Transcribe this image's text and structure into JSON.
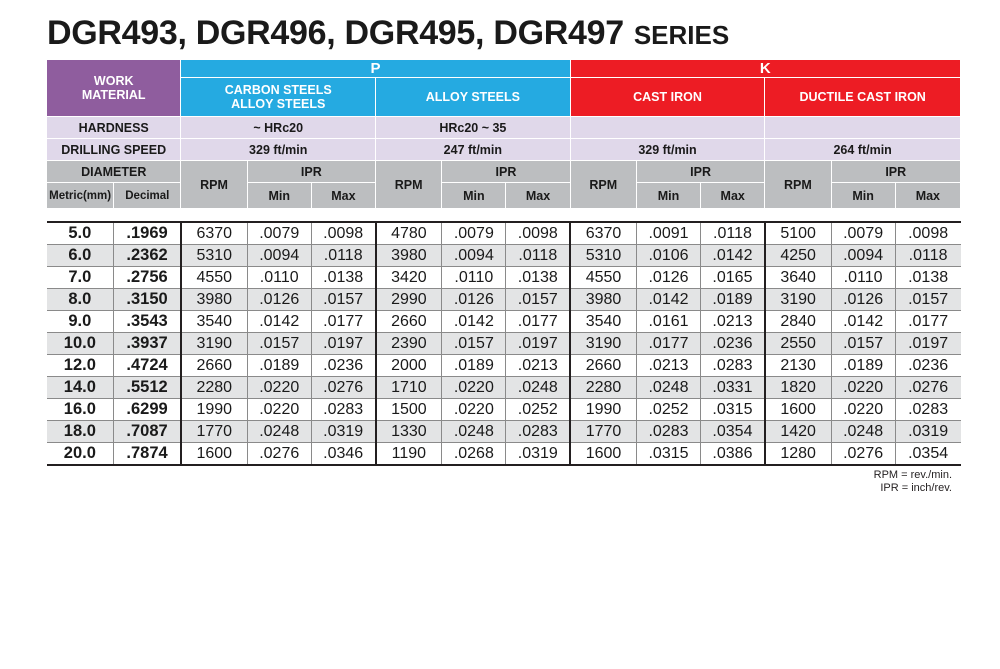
{
  "title": {
    "main": "DGR493, DGR496, DGR495, DGR497",
    "series": "SERIES"
  },
  "header": {
    "work_material": "WORK MATERIAL",
    "group_p": "P",
    "group_k": "K",
    "materials": [
      "CARBON STEELS ALLOY STEELS",
      "ALLOY STEELS",
      "CAST IRON",
      "DUCTILE CAST IRON"
    ],
    "hardness_label": "HARDNESS",
    "hardness": [
      "~ HRc20",
      "HRc20 ~ 35",
      "",
      ""
    ],
    "drilling_speed_label": "DRILLING SPEED",
    "drilling_speed": [
      "329 ft/min",
      "247 ft/min",
      "329 ft/min",
      "264 ft/min"
    ],
    "diameter": "DIAMETER",
    "metric": "Metric(mm)",
    "decimal": "Decimal",
    "rpm": "RPM",
    "ipr": "IPR",
    "min": "Min",
    "max": "Max"
  },
  "rows": [
    [
      "5.0",
      ".1969",
      "6370",
      ".0079",
      ".0098",
      "4780",
      ".0079",
      ".0098",
      "6370",
      ".0091",
      ".0118",
      "5100",
      ".0079",
      ".0098"
    ],
    [
      "6.0",
      ".2362",
      "5310",
      ".0094",
      ".0118",
      "3980",
      ".0094",
      ".0118",
      "5310",
      ".0106",
      ".0142",
      "4250",
      ".0094",
      ".0118"
    ],
    [
      "7.0",
      ".2756",
      "4550",
      ".0110",
      ".0138",
      "3420",
      ".0110",
      ".0138",
      "4550",
      ".0126",
      ".0165",
      "3640",
      ".0110",
      ".0138"
    ],
    [
      "8.0",
      ".3150",
      "3980",
      ".0126",
      ".0157",
      "2990",
      ".0126",
      ".0157",
      "3980",
      ".0142",
      ".0189",
      "3190",
      ".0126",
      ".0157"
    ],
    [
      "9.0",
      ".3543",
      "3540",
      ".0142",
      ".0177",
      "2660",
      ".0142",
      ".0177",
      "3540",
      ".0161",
      ".0213",
      "2840",
      ".0142",
      ".0177"
    ],
    [
      "10.0",
      ".3937",
      "3190",
      ".0157",
      ".0197",
      "2390",
      ".0157",
      ".0197",
      "3190",
      ".0177",
      ".0236",
      "2550",
      ".0157",
      ".0197"
    ],
    [
      "12.0",
      ".4724",
      "2660",
      ".0189",
      ".0236",
      "2000",
      ".0189",
      ".0213",
      "2660",
      ".0213",
      ".0283",
      "2130",
      ".0189",
      ".0236"
    ],
    [
      "14.0",
      ".5512",
      "2280",
      ".0220",
      ".0276",
      "1710",
      ".0220",
      ".0248",
      "2280",
      ".0248",
      ".0331",
      "1820",
      ".0220",
      ".0276"
    ],
    [
      "16.0",
      ".6299",
      "1990",
      ".0220",
      ".0283",
      "1500",
      ".0220",
      ".0252",
      "1990",
      ".0252",
      ".0315",
      "1600",
      ".0220",
      ".0283"
    ],
    [
      "18.0",
      ".7087",
      "1770",
      ".0248",
      ".0319",
      "1330",
      ".0248",
      ".0283",
      "1770",
      ".0283",
      ".0354",
      "1420",
      ".0248",
      ".0319"
    ],
    [
      "20.0",
      ".7874",
      "1600",
      ".0276",
      ".0346",
      "1190",
      ".0268",
      ".0319",
      "1600",
      ".0315",
      ".0386",
      "1280",
      ".0276",
      ".0354"
    ]
  ],
  "notes": [
    "RPM = rev./min.",
    "IPR = inch/rev."
  ],
  "colors": {
    "purple": "#8f5d9e",
    "lavender": "#e0d8ea",
    "grey": "#bcbec0",
    "blue": "#25aae1",
    "red": "#ed1c24",
    "stripe": "#e3e4e5"
  }
}
